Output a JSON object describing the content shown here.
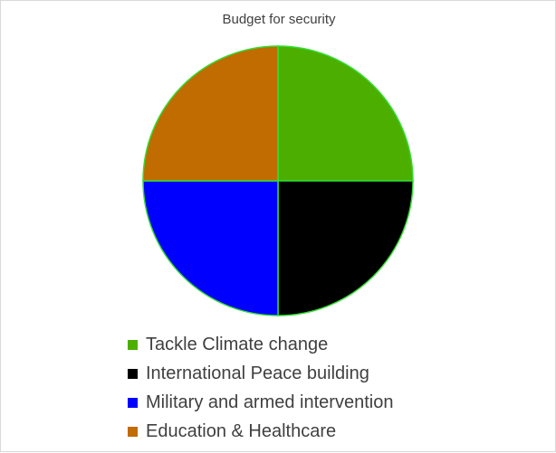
{
  "chart_data": {
    "type": "pie",
    "title": "Budget for security",
    "categories": [
      "Tackle Climate change",
      "International Peace building",
      "Military and armed intervention",
      "Education & Healthcare"
    ],
    "values": [
      25,
      25,
      25,
      25
    ],
    "colors": [
      "#4caf00",
      "#000000",
      "#0000ff",
      "#c06c00"
    ],
    "slice_border_color": "#33dd33",
    "legend_position": "bottom"
  }
}
